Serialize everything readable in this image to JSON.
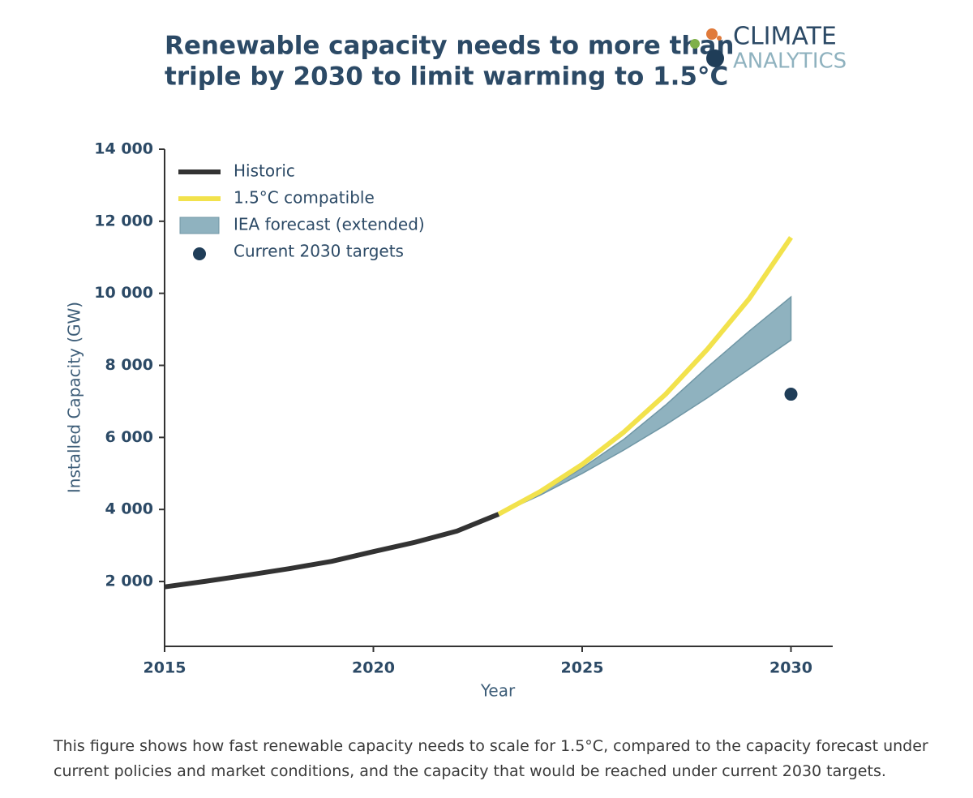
{
  "title": [
    "Renewable capacity needs to more than",
    "triple by 2030 to limit warming to 1.5°C"
  ],
  "logo": [
    "CLIMATE",
    "ANALYTICS"
  ],
  "caption": "This figure shows how fast renewable capacity needs to scale for 1.5°C, compared to the capacity forecast under current policies and market conditions, and the capacity that would be reached under current 2030 targets.",
  "chart_data": {
    "type": "line",
    "x_label": "Year",
    "y_label": "Installed Capacity (GW)",
    "x": [
      2015,
      2016,
      2017,
      2018,
      2019,
      2020,
      2021,
      2022,
      2023,
      2024,
      2025,
      2026,
      2027,
      2028,
      2029,
      2030
    ],
    "xlim": [
      2015,
      2031
    ],
    "xticks": [
      2015,
      2020,
      2025,
      2030
    ],
    "ylim": [
      200,
      14000
    ],
    "yticks": [
      {
        "value": 2000,
        "label": "2 000"
      },
      {
        "value": 4000,
        "label": "4 000"
      },
      {
        "value": 6000,
        "label": "6 000"
      },
      {
        "value": 8000,
        "label": "8 000"
      },
      {
        "value": 10000,
        "label": "10 000"
      },
      {
        "value": 12000,
        "label": "12 000"
      },
      {
        "value": 14000,
        "label": "14 000"
      }
    ],
    "grid": false,
    "legend": "upper left",
    "series": [
      {
        "name": "Historic",
        "kind": "line",
        "color": "#333333",
        "values": [
          1850,
          2010,
          2180,
          2360,
          2560,
          2830,
          3090,
          3400,
          3870,
          null,
          null,
          null,
          null,
          null,
          null,
          null
        ]
      },
      {
        "name": "1.5°C compatible",
        "kind": "line",
        "color": "#f2e24c",
        "values": [
          null,
          null,
          null,
          null,
          null,
          null,
          null,
          null,
          3870,
          4500,
          5250,
          6150,
          7200,
          8450,
          9850,
          11550
        ]
      },
      {
        "name": "IEA forecast (extended)",
        "kind": "band",
        "color": "#8fb2bf",
        "lower": [
          null,
          null,
          null,
          null,
          null,
          null,
          null,
          null,
          3870,
          4400,
          5000,
          5650,
          6350,
          7100,
          7900,
          8700
        ],
        "upper": [
          null,
          null,
          null,
          null,
          null,
          null,
          null,
          null,
          3870,
          4450,
          5150,
          5950,
          6900,
          7950,
          8950,
          9900
        ]
      },
      {
        "name": "Current 2030 targets",
        "kind": "point",
        "color": "#1f3d58",
        "values": [
          null,
          null,
          null,
          null,
          null,
          null,
          null,
          null,
          null,
          null,
          null,
          null,
          null,
          null,
          null,
          7200
        ]
      }
    ]
  }
}
